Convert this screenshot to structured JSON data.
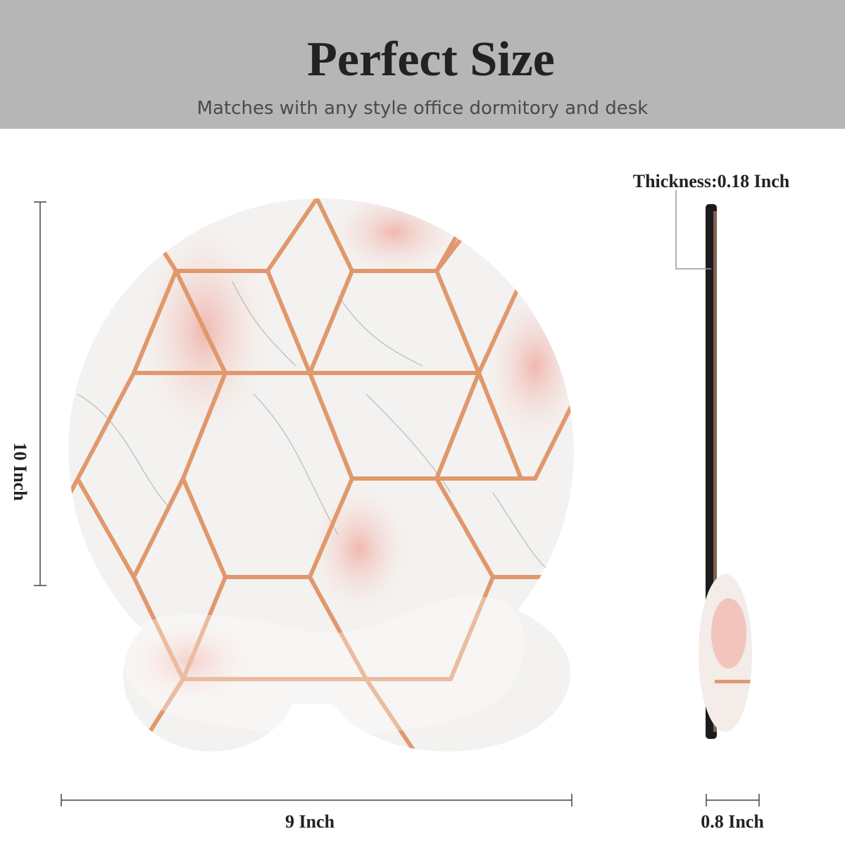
{
  "header": {
    "title": "Perfect Size",
    "subtitle": "Matches with any style office dormitory and desk"
  },
  "dimensions": {
    "height": "10 Inch",
    "width": "9 Inch",
    "thickness": "Thickness:0.18 Inch",
    "rest_depth": "0.8 Inch"
  }
}
